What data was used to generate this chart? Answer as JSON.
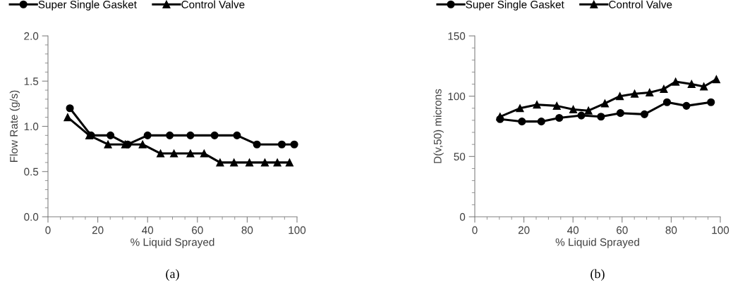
{
  "chart_data": [
    {
      "type": "line",
      "xlabel": "% Liquid Sprayed",
      "ylabel": "Flow Rate (g/s)",
      "xlim": [
        0,
        100
      ],
      "xticks": [
        0,
        20,
        40,
        60,
        80,
        100
      ],
      "ylim": [
        0,
        2.0
      ],
      "yticks": [
        {
          "value": 0,
          "label": "0.0"
        },
        {
          "value": 0.5,
          "label": "0.5"
        },
        {
          "value": 1.0,
          "label": "1.0"
        },
        {
          "value": 1.5,
          "label": "1.5"
        },
        {
          "value": 2.0,
          "label": "2.0"
        }
      ],
      "grid": false,
      "legend": "top left",
      "annotations": [
        "(a)"
      ],
      "series": [
        {
          "name": "Super Single Gasket",
          "color": "#000000",
          "marker": "circle",
          "x": [
            8.8,
            17.3,
            25.1,
            32,
            40,
            48.9,
            57.2,
            66.9,
            75.9,
            83.9,
            93.9,
            98.9
          ],
          "values": [
            1.2,
            0.9,
            0.9,
            0.8,
            0.9,
            0.9,
            0.9,
            0.9,
            0.9,
            0.8,
            0.8,
            0.8
          ]
        },
        {
          "name": "Control Valve",
          "color": "#000000",
          "marker": "triangle",
          "x": [
            7.9,
            16.6,
            24.1,
            31,
            38,
            45.2,
            50.6,
            57.2,
            62.7,
            69.1,
            74.7,
            80.9,
            87.1,
            92.1,
            97
          ],
          "values": [
            1.1,
            0.9,
            0.8,
            0.8,
            0.8,
            0.7,
            0.7,
            0.7,
            0.7,
            0.6,
            0.6,
            0.6,
            0.6,
            0.6,
            0.6
          ]
        }
      ]
    },
    {
      "type": "line",
      "xlabel": "% Liquid Sprayed",
      "ylabel": "D(v,50) microns",
      "xlim": [
        0,
        100
      ],
      "xticks": [
        0,
        20,
        40,
        60,
        80,
        100
      ],
      "ylim": [
        0,
        150
      ],
      "yticks": [
        0,
        50,
        100,
        150
      ],
      "grid": false,
      "legend": "top left",
      "annotations": [
        "(b)"
      ],
      "series": [
        {
          "name": "Super Single Gasket",
          "color": "#000000",
          "marker": "circle",
          "x": [
            10.3,
            19.2,
            27.1,
            34.4,
            43.4,
            51.4,
            59.3,
            69.1,
            78.3,
            86.2,
            96.2
          ],
          "values": [
            81,
            79,
            79,
            82,
            84,
            83,
            86,
            85,
            95,
            92,
            95
          ]
        },
        {
          "name": "Control Valve",
          "color": "#000000",
          "marker": "triangle",
          "x": [
            10.3,
            18.4,
            25.3,
            33.4,
            40.1,
            46.3,
            53,
            59.1,
            65.1,
            71.2,
            77,
            81.8,
            88.3,
            93.3,
            98.4
          ],
          "values": [
            83,
            90,
            93,
            92,
            89,
            88,
            94,
            100,
            102,
            103,
            106,
            112,
            110,
            108,
            114
          ]
        }
      ]
    }
  ]
}
